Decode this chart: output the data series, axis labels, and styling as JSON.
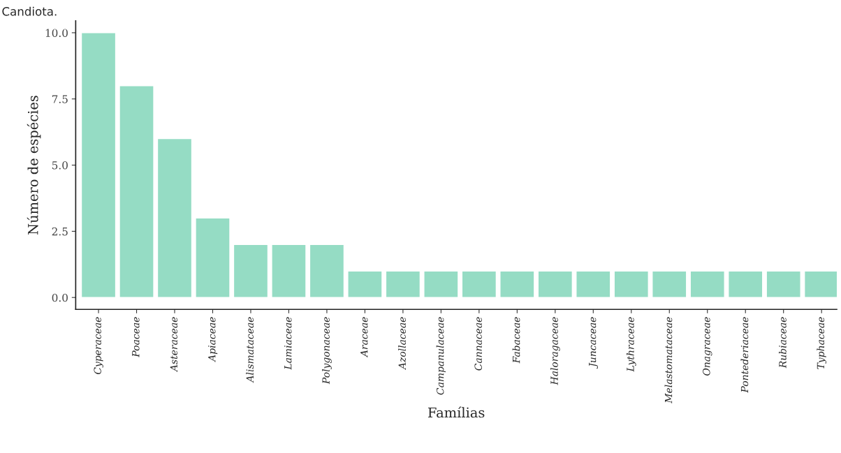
{
  "chart_data": {
    "type": "bar",
    "xlabel": "Famílias",
    "ylabel": "Número de espécies",
    "annotations": [
      "Candiota."
    ],
    "categories": [
      "Cyperaceae",
      "Poaceae",
      "Asteraceae",
      "Apiaceae",
      "Alismataceae",
      "Lamiaceae",
      "Polygonaceae",
      "Araceae",
      "Azollaceae",
      "Campanulaceae",
      "Cannaceae",
      "Fabaceae",
      "Haloragaceae",
      "Juncaceae",
      "Lythraceae",
      "Melastomataceae",
      "Onagraceae",
      "Pontederiaceae",
      "Rubiaceae",
      "Typhaceae"
    ],
    "values": [
      10,
      8,
      6,
      3,
      2,
      2,
      2,
      1,
      1,
      1,
      1,
      1,
      1,
      1,
      1,
      1,
      1,
      1,
      1,
      1
    ],
    "color": "#95dcc4",
    "ylim": [
      -0.45,
      10.45
    ],
    "yticks": [
      {
        "value": 0,
        "label": "0.0"
      },
      {
        "value": 2.5,
        "label": "2.5"
      },
      {
        "value": 5,
        "label": "5.0"
      },
      {
        "value": 7.5,
        "label": "7.5"
      },
      {
        "value": 10,
        "label": "10.0"
      }
    ],
    "grid": false,
    "legend": false
  }
}
